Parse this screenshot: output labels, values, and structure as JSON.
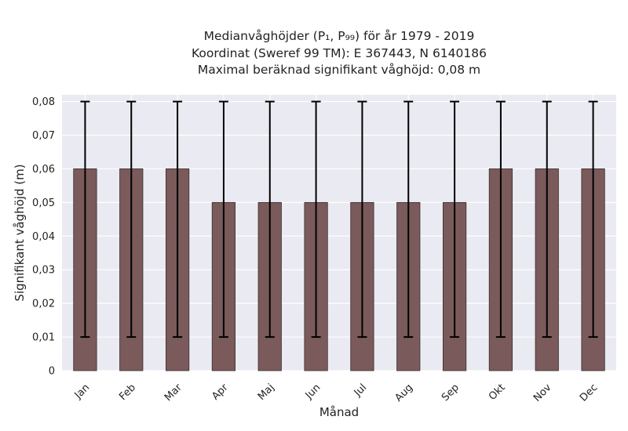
{
  "chart_data": {
    "type": "bar",
    "title_lines": [
      "Medianvåghöjder (P₁, P₉₉) för år 1979 - 2019",
      "Koordinat (Sweref 99 TM): E 367443, N 6140186",
      "Maximal beräknad signifikant våghöjd: 0,08 m"
    ],
    "xlabel": "Månad",
    "ylabel": "Signifikant våghöjd (m)",
    "categories": [
      "Jan",
      "Feb",
      "Mar",
      "Apr",
      "Maj",
      "Jun",
      "Jul",
      "Aug",
      "Sep",
      "Okt",
      "Nov",
      "Dec"
    ],
    "values": [
      0.06,
      0.06,
      0.06,
      0.05,
      0.05,
      0.05,
      0.05,
      0.05,
      0.05,
      0.06,
      0.06,
      0.06
    ],
    "error_low": [
      0.01,
      0.01,
      0.01,
      0.01,
      0.01,
      0.01,
      0.01,
      0.01,
      0.01,
      0.01,
      0.01,
      0.01
    ],
    "error_high": [
      0.08,
      0.08,
      0.08,
      0.08,
      0.08,
      0.08,
      0.08,
      0.08,
      0.08,
      0.08,
      0.08,
      0.08
    ],
    "ylim": [
      0,
      0.082
    ],
    "yticks": [
      0,
      0.01,
      0.02,
      0.03,
      0.04,
      0.05,
      0.06,
      0.07,
      0.08
    ],
    "ytick_labels": [
      "0",
      "0,01",
      "0,02",
      "0,03",
      "0,04",
      "0,05",
      "0,06",
      "0,07",
      "0,08"
    ],
    "grid": true,
    "colors": {
      "bar": "#7a5a5a",
      "bar_edge": "#3d2e2e",
      "plot_background": "#eaeaf2",
      "grid": "#ffffff",
      "error_bar": "#000000"
    }
  }
}
